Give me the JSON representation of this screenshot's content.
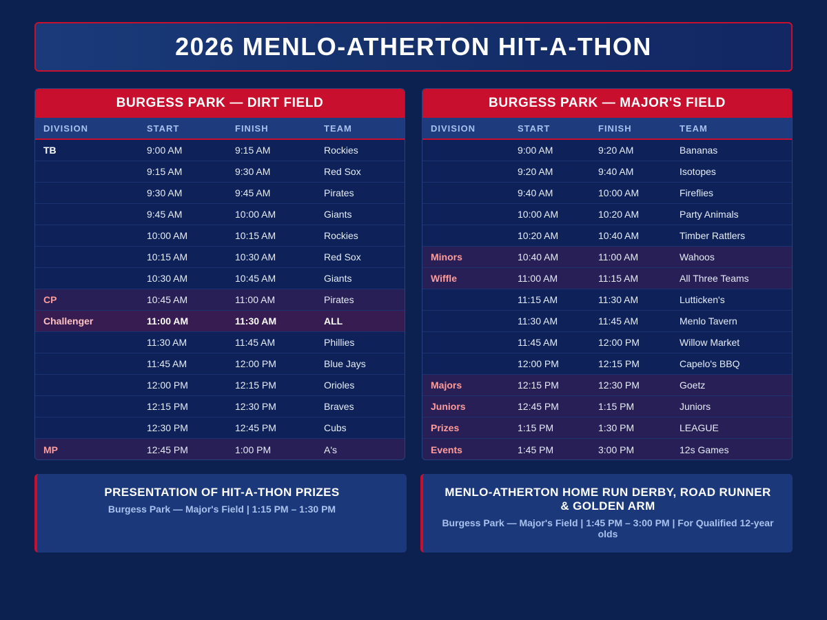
{
  "header": {
    "title": "2026 MENLO-ATHERTON HIT-A-THON"
  },
  "columns": [
    "DIVISION",
    "START",
    "FINISH",
    "TEAM"
  ],
  "dirt_field": {
    "title": "BURGESS PARK — DIRT FIELD",
    "rows": [
      {
        "division": "TB",
        "start": "9:00 AM",
        "finish": "9:15 AM",
        "team": "Rockies",
        "style": "tb"
      },
      {
        "division": "",
        "start": "9:15 AM",
        "finish": "9:30 AM",
        "team": "Red Sox",
        "style": ""
      },
      {
        "division": "",
        "start": "9:30 AM",
        "finish": "9:45 AM",
        "team": "Pirates",
        "style": ""
      },
      {
        "division": "",
        "start": "9:45 AM",
        "finish": "10:00 AM",
        "team": "Giants",
        "style": ""
      },
      {
        "division": "",
        "start": "10:00 AM",
        "finish": "10:15 AM",
        "team": "Rockies",
        "style": ""
      },
      {
        "division": "",
        "start": "10:15 AM",
        "finish": "10:30 AM",
        "team": "Red Sox",
        "style": ""
      },
      {
        "division": "",
        "start": "10:30 AM",
        "finish": "10:45 AM",
        "team": "Giants",
        "style": ""
      },
      {
        "division": "CP",
        "start": "10:45 AM",
        "finish": "11:00 AM",
        "team": "Pirates",
        "style": "alt"
      },
      {
        "division": "Challenger",
        "start": "11:00 AM",
        "finish": "11:30 AM",
        "team": "ALL",
        "style": "hl"
      },
      {
        "division": "",
        "start": "11:30 AM",
        "finish": "11:45 AM",
        "team": "Phillies",
        "style": ""
      },
      {
        "division": "",
        "start": "11:45 AM",
        "finish": "12:00 PM",
        "team": "Blue Jays",
        "style": ""
      },
      {
        "division": "",
        "start": "12:00 PM",
        "finish": "12:15 PM",
        "team": "Orioles",
        "style": ""
      },
      {
        "division": "",
        "start": "12:15 PM",
        "finish": "12:30 PM",
        "team": "Braves",
        "style": ""
      },
      {
        "division": "",
        "start": "12:30 PM",
        "finish": "12:45 PM",
        "team": "Cubs",
        "style": ""
      },
      {
        "division": "MP",
        "start": "12:45 PM",
        "finish": "1:00 PM",
        "team": "A's",
        "style": "alt"
      }
    ]
  },
  "majors_field": {
    "title": "BURGESS PARK — MAJOR'S FIELD",
    "rows": [
      {
        "division": "",
        "start": "9:00 AM",
        "finish": "9:20 AM",
        "team": "Bananas",
        "style": ""
      },
      {
        "division": "",
        "start": "9:20 AM",
        "finish": "9:40 AM",
        "team": "Isotopes",
        "style": ""
      },
      {
        "division": "",
        "start": "9:40 AM",
        "finish": "10:00 AM",
        "team": "Fireflies",
        "style": ""
      },
      {
        "division": "",
        "start": "10:00 AM",
        "finish": "10:20 AM",
        "team": "Party Animals",
        "style": ""
      },
      {
        "division": "",
        "start": "10:20 AM",
        "finish": "10:40 AM",
        "team": "Timber Rattlers",
        "style": ""
      },
      {
        "division": "Minors",
        "start": "10:40 AM",
        "finish": "11:00 AM",
        "team": "Wahoos",
        "style": "alt"
      },
      {
        "division": "Wiffle",
        "start": "11:00 AM",
        "finish": "11:15 AM",
        "team": "All Three Teams",
        "style": "alt"
      },
      {
        "division": "",
        "start": "11:15 AM",
        "finish": "11:30 AM",
        "team": "Lutticken's",
        "style": ""
      },
      {
        "division": "",
        "start": "11:30 AM",
        "finish": "11:45 AM",
        "team": "Menlo Tavern",
        "style": ""
      },
      {
        "division": "",
        "start": "11:45 AM",
        "finish": "12:00 PM",
        "team": "Willow Market",
        "style": ""
      },
      {
        "division": "",
        "start": "12:00 PM",
        "finish": "12:15 PM",
        "team": "Capelo's BBQ",
        "style": ""
      },
      {
        "division": "Majors",
        "start": "12:15 PM",
        "finish": "12:30 PM",
        "team": "Goetz",
        "style": "alt"
      },
      {
        "division": "Juniors",
        "start": "12:45 PM",
        "finish": "1:15 PM",
        "team": "Juniors",
        "style": "alt"
      },
      {
        "division": "Prizes",
        "start": "1:15 PM",
        "finish": "1:30 PM",
        "team": "LEAGUE",
        "style": "alt"
      },
      {
        "division": "Events",
        "start": "1:45 PM",
        "finish": "3:00 PM",
        "team": "12s Games",
        "style": "alt"
      }
    ]
  },
  "prizes_card": {
    "title": "PRESENTATION OF HIT-A-THON PRIZES",
    "details": "Burgess Park — Major's Field  |  1:15 PM – 1:30 PM"
  },
  "derby_card": {
    "title": "MENLO-ATHERTON HOME RUN DERBY, ROAD RUNNER & GOLDEN ARM",
    "details": "Burgess Park — Major's Field  |  1:45 PM – 3:00 PM  |  For Qualified 12-year olds"
  }
}
